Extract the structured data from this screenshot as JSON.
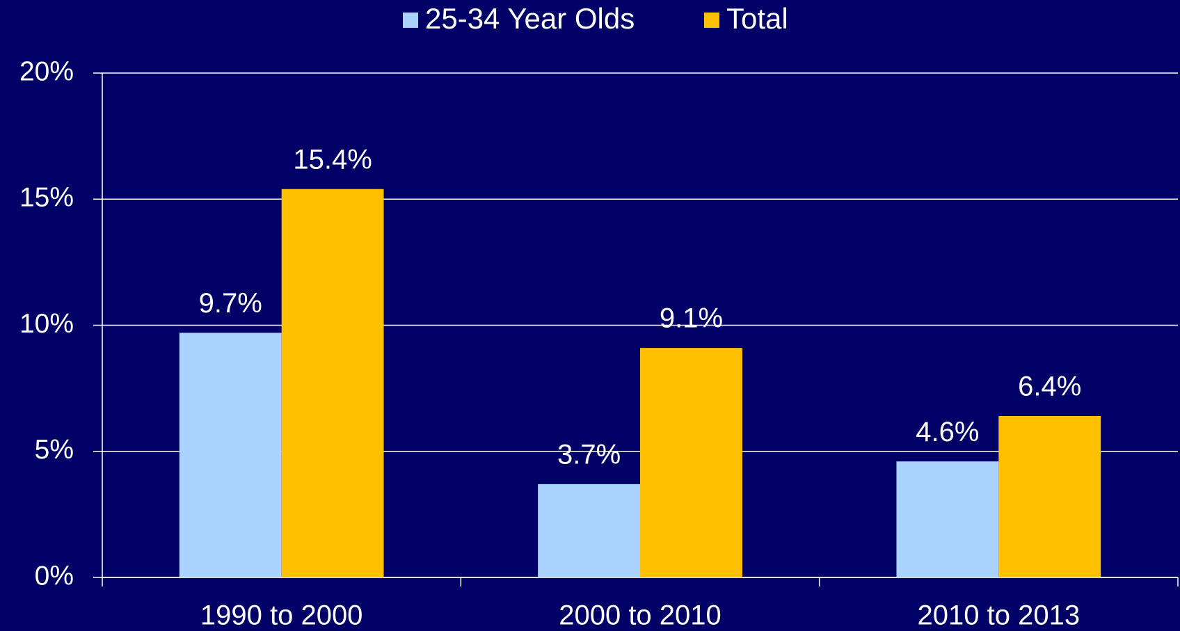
{
  "chart_data": {
    "type": "bar",
    "categories": [
      "1990 to 2000",
      "2000 to 2010",
      "2010 to 2013"
    ],
    "series": [
      {
        "name": "25-34 Year Olds",
        "color": "#aad4ff",
        "values": [
          9.7,
          3.7,
          4.6
        ],
        "value_labels": [
          "9.7%",
          "3.7%",
          "4.6%"
        ]
      },
      {
        "name": "Total",
        "color": "#ffc000",
        "values": [
          15.4,
          9.1,
          6.4
        ],
        "value_labels": [
          "15.4%",
          "9.1%",
          "6.4%"
        ]
      }
    ],
    "ylim": [
      0,
      20
    ],
    "yticks": [
      {
        "value": 0,
        "label": "0%"
      },
      {
        "value": 5,
        "label": "5%"
      },
      {
        "value": 10,
        "label": "10%"
      },
      {
        "value": 15,
        "label": "15%"
      },
      {
        "value": 20,
        "label": "20%"
      }
    ],
    "grid": true,
    "legend": "top",
    "background": "#000066"
  }
}
